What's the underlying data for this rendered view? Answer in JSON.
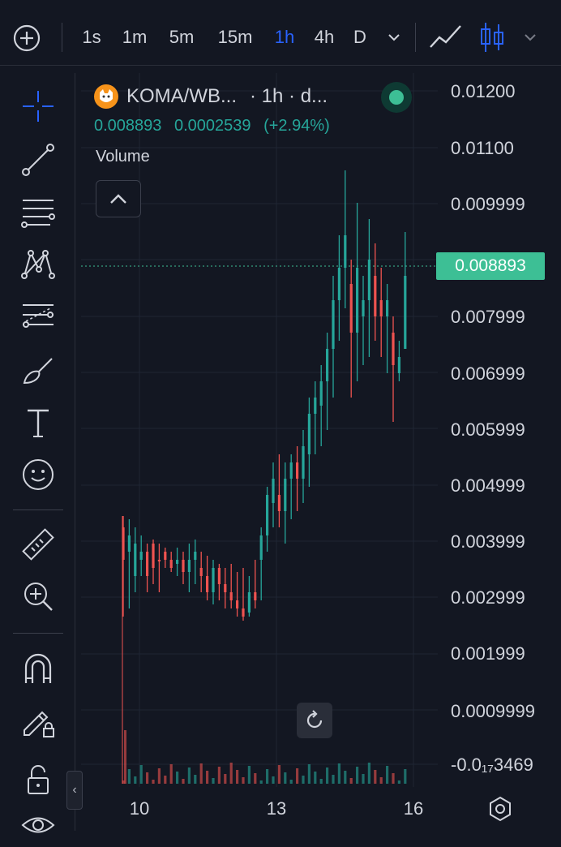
{
  "topbar": {
    "add_icon": "plus-circle-icon",
    "intervals": [
      "1s",
      "1m",
      "5m",
      "15m",
      "1h",
      "4h",
      "D"
    ],
    "active_interval": "1h",
    "more_icon": "chevron-down-icon",
    "chart_type_icons": [
      "line-chart-icon",
      "candles-icon"
    ]
  },
  "toolbar": {
    "tools": [
      "crosshair-icon",
      "trend-line-icon",
      "fib-retracement-icon",
      "pattern-icon",
      "projection-icon",
      "brush-icon",
      "text-icon",
      "emoji-icon",
      "ruler-icon",
      "zoom-in-icon",
      "magnet-icon",
      "lock-drawing-icon",
      "lock-icon",
      "eye-icon"
    ],
    "collapse_symbol": "‹"
  },
  "legend": {
    "symbol": "KOMA/WB...",
    "meta": "· 1h · d...",
    "price": "0.008893",
    "change": "0.0002539",
    "change_pct": "(+2.94%)",
    "volume_label": "Volume"
  },
  "axis": {
    "y_labels": [
      "0.01200",
      "0.01100",
      "0.009999",
      "0.007999",
      "0.006999",
      "0.005999",
      "0.004999",
      "0.003999",
      "0.002999",
      "0.001999",
      "0.0009999",
      "-0.0₁₇3469"
    ],
    "x_labels": [
      "10",
      "13",
      "16"
    ],
    "last_price": "0.008893"
  },
  "colors": {
    "up": "#26a69a",
    "down": "#ef5350",
    "accent": "#2962ff",
    "price_tag": "#3dbf95"
  }
}
